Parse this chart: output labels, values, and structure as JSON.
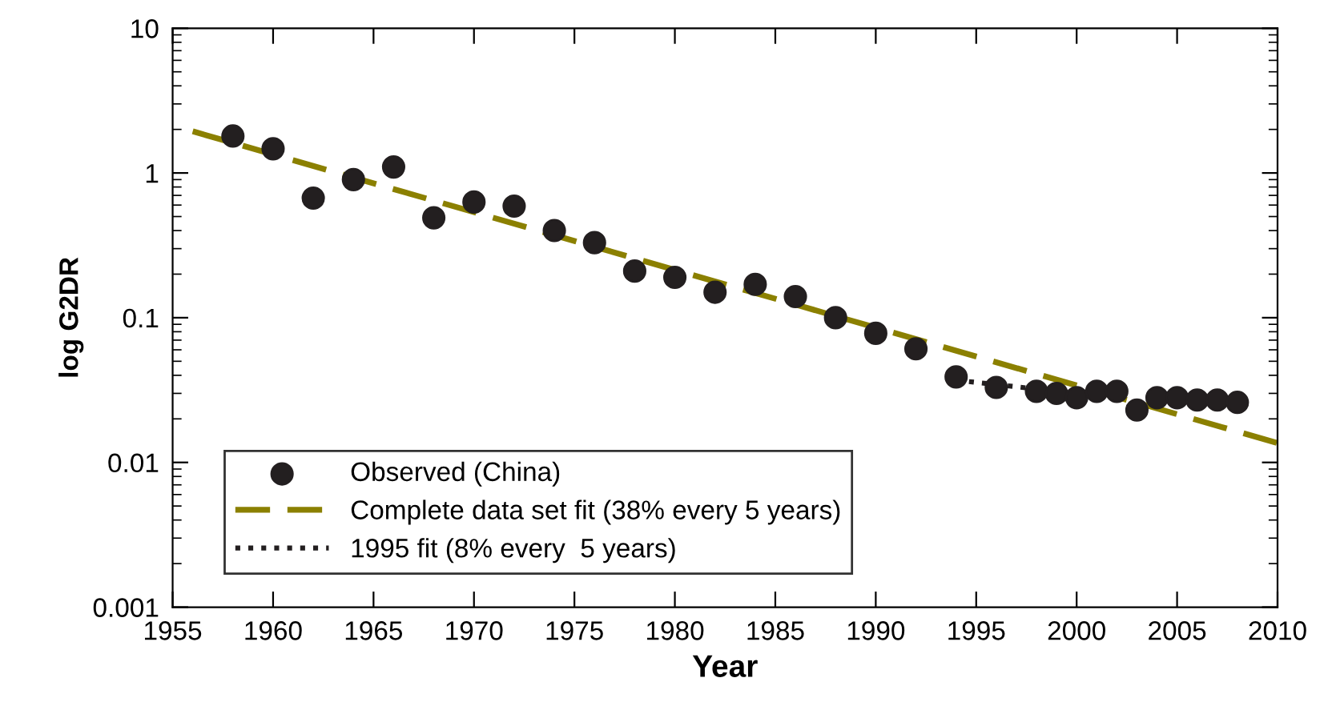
{
  "chart_data": {
    "type": "scatter",
    "xlabel": "Year",
    "ylabel": "log G2DR",
    "log": "y",
    "grid": false,
    "legend": "bottom left",
    "xlim": [
      1955,
      2010
    ],
    "xticks": [
      1955,
      1960,
      1965,
      1970,
      1975,
      1980,
      1985,
      1990,
      1995,
      2000,
      2005,
      2010
    ],
    "ylim": [
      0.001,
      10
    ],
    "yticks": [
      0.001,
      0.01,
      0.1,
      1,
      10
    ],
    "series": [
      {
        "name": "Observed (China)",
        "marker": "circle",
        "color": "#231f20",
        "x": [
          1958,
          1960,
          1962,
          1964,
          1966,
          1968,
          1970,
          1972,
          1974,
          1976,
          1978,
          1980,
          1982,
          1984,
          1986,
          1988,
          1990,
          1992,
          1994,
          1996,
          1998,
          1999,
          2000,
          2001,
          2002,
          2003,
          2004,
          2005,
          2006,
          2007,
          2008
        ],
        "values": [
          1.8,
          1.47,
          0.67,
          0.9,
          1.1,
          0.49,
          0.63,
          0.59,
          0.4,
          0.33,
          0.21,
          0.19,
          0.15,
          0.17,
          0.14,
          0.1,
          0.078,
          0.061,
          0.039,
          0.033,
          0.031,
          0.03,
          0.028,
          0.031,
          0.031,
          0.023,
          0.028,
          0.028,
          0.027,
          0.027,
          0.026
        ]
      },
      {
        "name": "Complete data set fit (38% every 5 years)",
        "type": "line",
        "line_style": "dashed",
        "marker": "none",
        "color": "#8b8000",
        "x": [
          1956,
          2010
        ],
        "values": [
          1.94,
          0.0136
        ]
      },
      {
        "name": "1995 fit (8% every  5 years)",
        "type": "line",
        "line_style": "dotted",
        "marker": "none",
        "color": "#231f20",
        "x": [
          1994,
          2002
        ],
        "values": [
          0.037,
          0.028
        ]
      }
    ]
  }
}
